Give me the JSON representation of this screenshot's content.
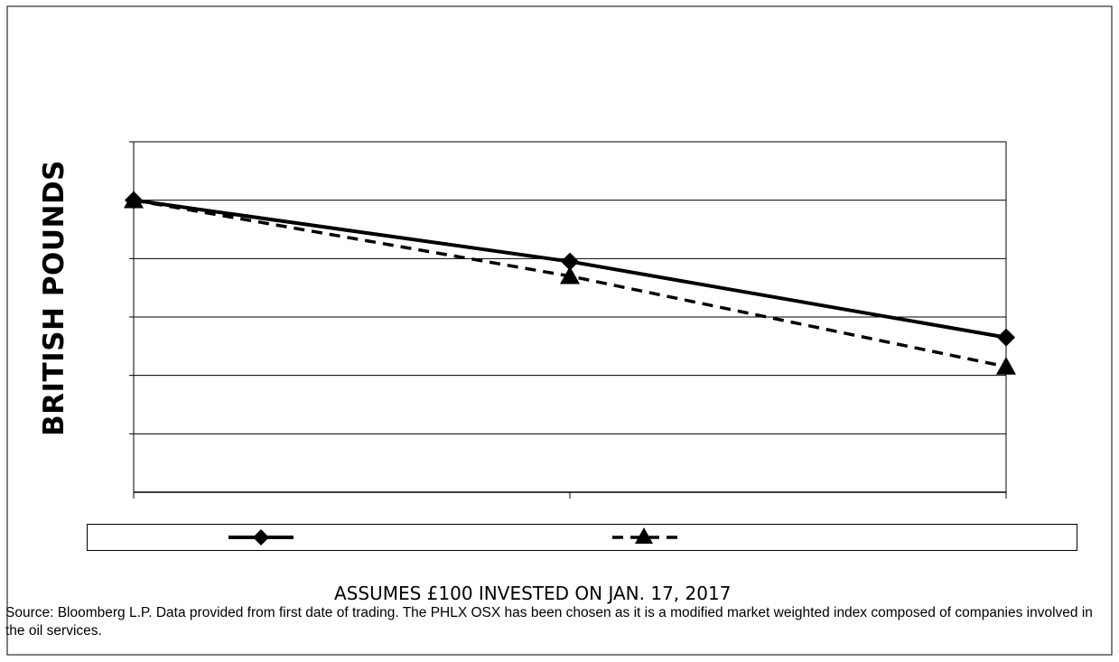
{
  "chart_data": {
    "type": "line",
    "title": "",
    "ylabel": "BRITISH POUNDS",
    "xlabel": "ASSUMES £100 INVESTED ON JAN. 17, 2017",
    "categories": [
      "",
      "",
      ""
    ],
    "ylim": [
      0,
      6
    ],
    "grid": true,
    "legend_position": "bottom",
    "series": [
      {
        "values": [
          5,
          3.95,
          2.65
        ],
        "style": "solid",
        "marker": "diamond",
        "color": "#000000"
      },
      {
        "values": [
          5,
          3.7,
          2.15
        ],
        "style": "dashed",
        "marker": "triangle",
        "color": "#000000"
      }
    ]
  },
  "footnote": "Source: Bloomberg L.P. Data provided from first date of trading. The PHLX OSX has been chosen as it is a modified market weighted index composed of companies involved in the oil services."
}
